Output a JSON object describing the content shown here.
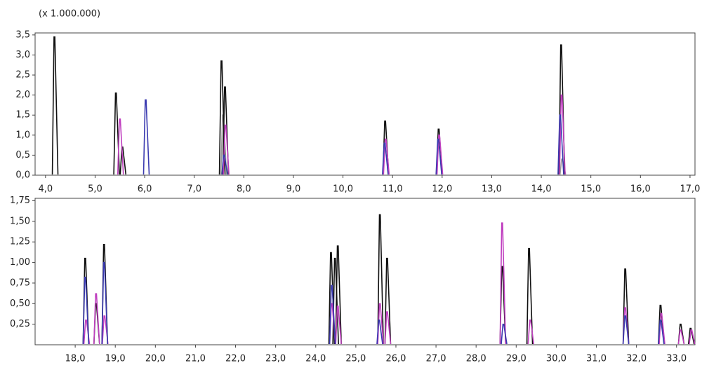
{
  "chart_data": [
    {
      "type": "chromatogram",
      "subtitle": "(x 1.000.000)",
      "xlim": [
        3.79,
        17.1
      ],
      "ylim": [
        0,
        3.55
      ],
      "xticks": [
        {
          "value": 4,
          "label": "4,0"
        },
        {
          "value": 5,
          "label": "5,0"
        },
        {
          "value": 6,
          "label": "6,0"
        },
        {
          "value": 7,
          "label": "7,0"
        },
        {
          "value": 8,
          "label": "8,0"
        },
        {
          "value": 9,
          "label": "9,0"
        },
        {
          "value": 10,
          "label": "10,0"
        },
        {
          "value": 11,
          "label": "11,0"
        },
        {
          "value": 12,
          "label": "12,0"
        },
        {
          "value": 13,
          "label": "13,0"
        },
        {
          "value": 14,
          "label": "14,0"
        },
        {
          "value": 15,
          "label": "15,0"
        },
        {
          "value": 16,
          "label": "16,0"
        },
        {
          "value": 17,
          "label": "17,0"
        }
      ],
      "yticks": [
        {
          "value": 0,
          "label": "0,0"
        },
        {
          "value": 0.5,
          "label": "0,5"
        },
        {
          "value": 1,
          "label": "1,0"
        },
        {
          "value": 1.5,
          "label": "1,5"
        },
        {
          "value": 2,
          "label": "2,0"
        },
        {
          "value": 2.5,
          "label": "2,5"
        },
        {
          "value": 3,
          "label": "3,0"
        },
        {
          "value": 3.5,
          "label": "3,5"
        }
      ],
      "series": [
        {
          "color": "#9a9a9a",
          "x": [
            7.58,
            14.42
          ],
          "values": [
            1.5,
            0.4
          ]
        },
        {
          "color": "#111111",
          "x": [
            4.18,
            5.42,
            5.55,
            7.55,
            7.62,
            10.85,
            11.93,
            14.4
          ],
          "values": [
            3.45,
            2.05,
            0.7,
            2.85,
            2.2,
            1.35,
            1.15,
            3.25
          ]
        },
        {
          "color": "#c040c0",
          "x": [
            5.5,
            7.63,
            10.86,
            11.94,
            14.41
          ],
          "values": [
            1.4,
            1.25,
            0.9,
            1.0,
            2.0
          ]
        },
        {
          "color": "#3a3ab0",
          "x": [
            6.02,
            7.6,
            10.84,
            11.92,
            14.38
          ],
          "values": [
            1.88,
            0.5,
            0.8,
            0.9,
            1.5
          ]
        }
      ]
    },
    {
      "type": "chromatogram",
      "xlim": [
        17.0,
        33.46
      ],
      "ylim": [
        0,
        1.78
      ],
      "xticks": [
        {
          "value": 18,
          "label": "18,0"
        },
        {
          "value": 19,
          "label": "19,0"
        },
        {
          "value": 20,
          "label": "20,0"
        },
        {
          "value": 21,
          "label": "21,0"
        },
        {
          "value": 22,
          "label": "22,0"
        },
        {
          "value": 23,
          "label": "23,0"
        },
        {
          "value": 24,
          "label": "24,0"
        },
        {
          "value": 25,
          "label": "25,0"
        },
        {
          "value": 26,
          "label": "26,0"
        },
        {
          "value": 27,
          "label": "27,0"
        },
        {
          "value": 28,
          "label": "28,0"
        },
        {
          "value": 29,
          "label": "29,0"
        },
        {
          "value": 30,
          "label": "30,0"
        },
        {
          "value": 31,
          "label": "31,0"
        },
        {
          "value": 32,
          "label": "32,0"
        },
        {
          "value": 33,
          "label": "33,0"
        }
      ],
      "yticks": [
        {
          "value": 0.25,
          "label": "0,25"
        },
        {
          "value": 0.5,
          "label": "0,50"
        },
        {
          "value": 0.75,
          "label": "0,75"
        },
        {
          "value": 1,
          "label": "1,00"
        },
        {
          "value": 1.25,
          "label": "1,25"
        },
        {
          "value": 1.5,
          "label": "1,50"
        },
        {
          "value": 1.75,
          "label": "1,75"
        }
      ],
      "series": [
        {
          "color": "#111111",
          "x": [
            18.25,
            18.52,
            18.72,
            24.38,
            24.48,
            24.55,
            25.6,
            25.78,
            28.65,
            29.32,
            31.72,
            32.6,
            33.1,
            33.35
          ],
          "values": [
            1.05,
            0.5,
            1.22,
            1.12,
            1.05,
            1.2,
            1.58,
            1.05,
            0.95,
            1.17,
            0.92,
            0.48,
            0.25,
            0.2
          ]
        },
        {
          "color": "#c040c0",
          "x": [
            18.27,
            18.52,
            18.73,
            24.4,
            24.55,
            25.6,
            25.78,
            28.65,
            29.35,
            31.72,
            32.62,
            33.1,
            33.37
          ],
          "values": [
            0.3,
            0.62,
            0.35,
            0.5,
            0.47,
            0.5,
            0.4,
            1.48,
            0.3,
            0.45,
            0.38,
            0.18,
            0.18
          ]
        },
        {
          "color": "#3a3ab0",
          "x": [
            18.25,
            18.72,
            24.4,
            25.58,
            28.68,
            31.72,
            32.6
          ],
          "values": [
            0.82,
            1.0,
            0.72,
            0.3,
            0.25,
            0.35,
            0.3
          ]
        }
      ]
    }
  ]
}
